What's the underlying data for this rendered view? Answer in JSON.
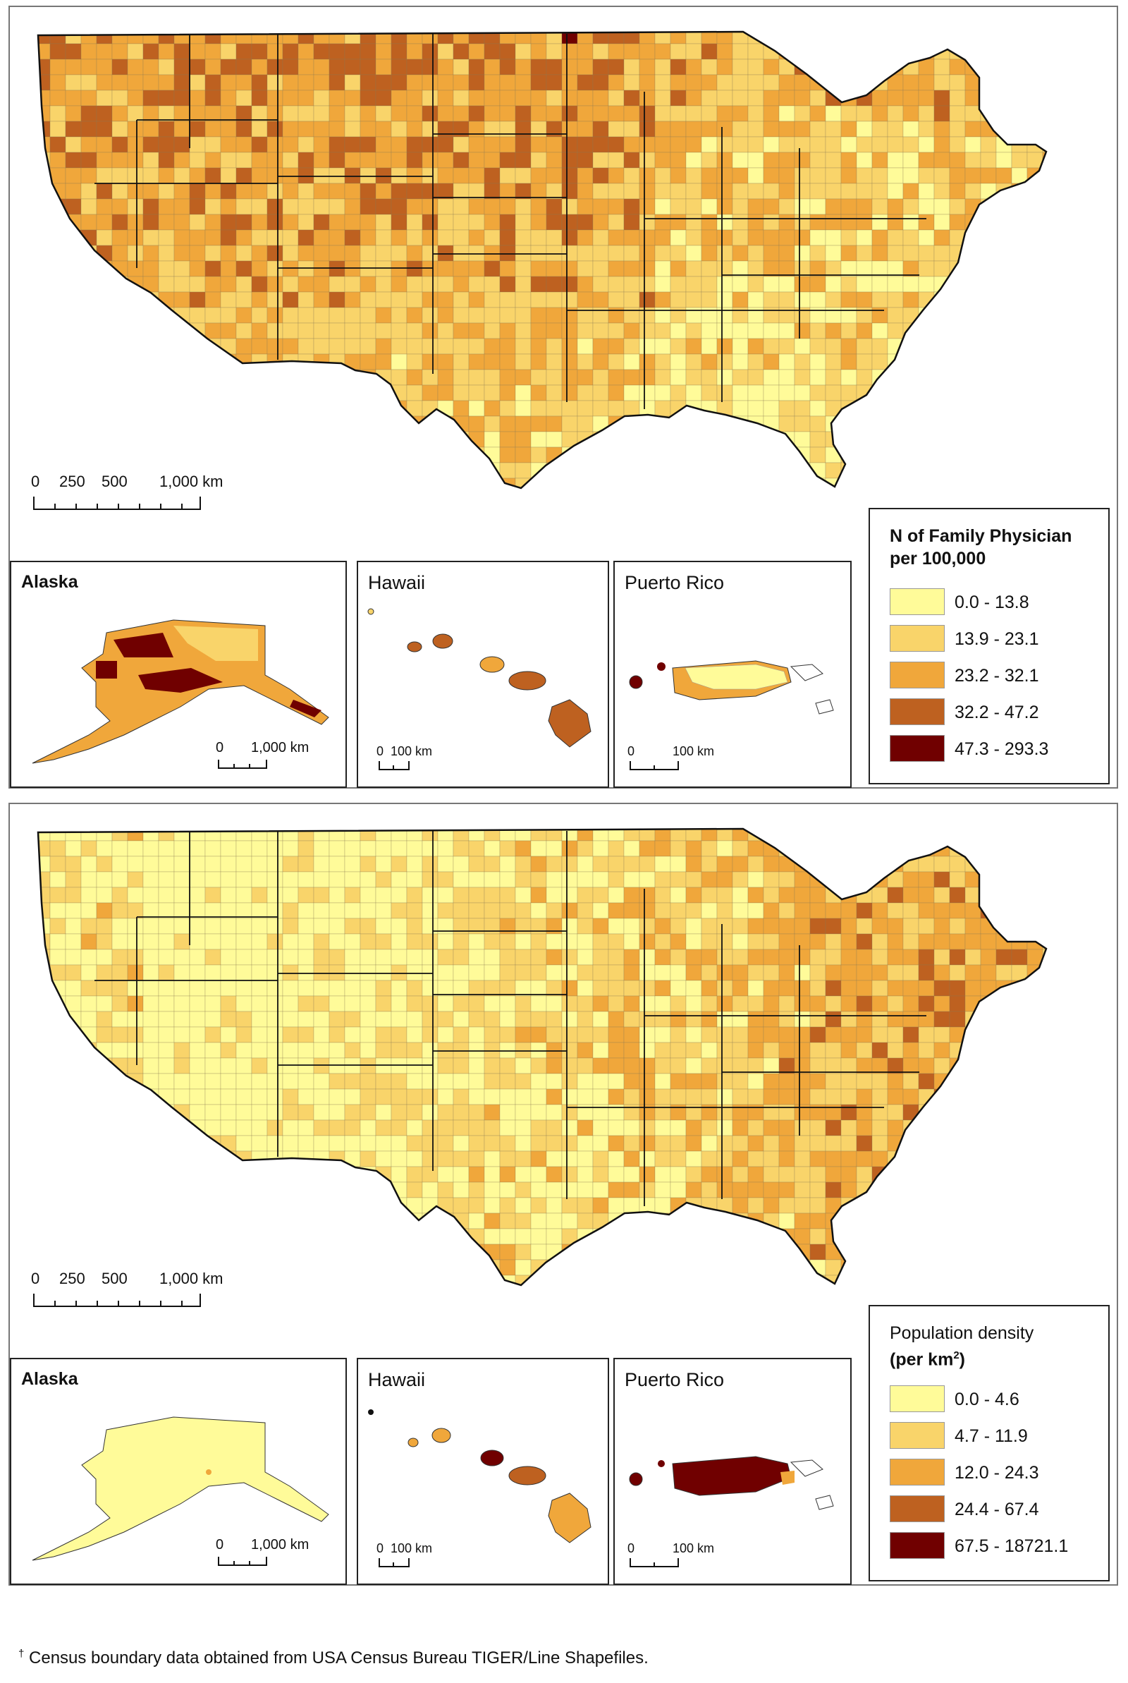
{
  "maps": [
    {
      "id": "family_physicians",
      "scale": {
        "labels": [
          "0",
          "250",
          "500",
          "1,000 km"
        ]
      },
      "insets": [
        {
          "title": "Alaska",
          "scale_labels": [
            "0",
            "1,000 km"
          ]
        },
        {
          "title": "Hawaii",
          "scale_labels": [
            "0",
            "100 km"
          ]
        },
        {
          "title": "Puerto Rico",
          "scale_labels": [
            "0",
            "100 km"
          ]
        }
      ],
      "legend": {
        "title_line1": "N of Family Physician",
        "title_line2": "per 100,000",
        "classes": [
          {
            "label": "0.0 - 13.8",
            "color": "#FFFB99"
          },
          {
            "label": "13.9 - 23.1",
            "color": "#F9D46A"
          },
          {
            "label": "23.2 - 32.1",
            "color": "#F0A73B"
          },
          {
            "label": "32.2 - 47.2",
            "color": "#BE6120"
          },
          {
            "label": "47.3 - 293.3",
            "color": "#700000"
          }
        ]
      }
    },
    {
      "id": "population_density",
      "scale": {
        "labels": [
          "0",
          "250",
          "500",
          "1,000 km"
        ]
      },
      "insets": [
        {
          "title": "Alaska",
          "scale_labels": [
            "0",
            "1,000 km"
          ]
        },
        {
          "title": "Hawaii",
          "scale_labels": [
            "0",
            "100 km"
          ]
        },
        {
          "title": "Puerto Rico",
          "scale_labels": [
            "0",
            "100 km"
          ]
        }
      ],
      "legend": {
        "title_line1": "Population density",
        "title_line2": "(per km",
        "title_sup": "2",
        "title_close": ")",
        "classes": [
          {
            "label": "0.0 - 4.6",
            "color": "#FFFB99"
          },
          {
            "label": "4.7 - 11.9",
            "color": "#F9D46A"
          },
          {
            "label": "12.0 - 24.3",
            "color": "#F0A73B"
          },
          {
            "label": "24.4 - 67.4",
            "color": "#BE6120"
          },
          {
            "label": "67.5 - 18721.1",
            "color": "#700000"
          }
        ]
      }
    }
  ],
  "footnote": {
    "mark": "†",
    "text": " Census boundary data obtained from USA Census Bureau TIGER/Line Shapefiles."
  }
}
